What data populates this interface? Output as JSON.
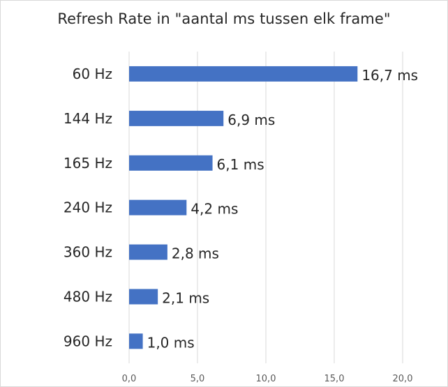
{
  "chart_data": {
    "type": "bar",
    "orientation": "horizontal",
    "title": "Refresh Rate in \"aantal ms tussen elk frame\"",
    "categories": [
      "60 Hz",
      "144 Hz",
      "165 Hz",
      "240 Hz",
      "360 Hz",
      "480 Hz",
      "960 Hz"
    ],
    "values": [
      16.7,
      6.9,
      6.1,
      4.2,
      2.8,
      2.1,
      1.0
    ],
    "data_labels": [
      "16,7 ms",
      "6,9 ms",
      "6,1 ms",
      "4,2 ms",
      "2,8 ms",
      "2,1 ms",
      "1,0 ms"
    ],
    "xlim": [
      0,
      20
    ],
    "x_ticks": [
      0,
      5,
      10,
      15,
      20
    ],
    "x_tick_labels": [
      "0,0",
      "5,0",
      "10,0",
      "15,0",
      "20,0"
    ],
    "grid": true,
    "legend": "none",
    "colors": {
      "bar": "#4472c4",
      "grid": "#d9d9d9",
      "text": "#262626"
    }
  }
}
